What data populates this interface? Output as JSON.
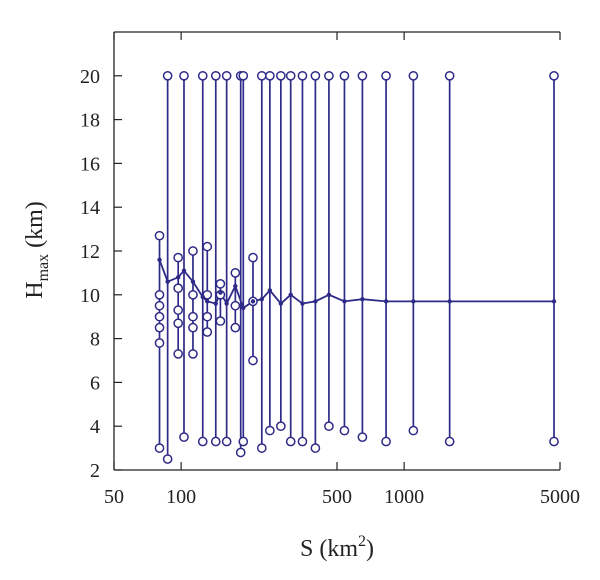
{
  "chart_data": {
    "type": "line",
    "x_scale": "log",
    "xlim": [
      50,
      5000
    ],
    "ylim": [
      2,
      22
    ],
    "grid": false,
    "legend": "none",
    "colors": {
      "series": "#2e2a88",
      "axis": "#222222"
    },
    "xlabel": {
      "main": "S (km",
      "sup": "2",
      "end": ")"
    },
    "ylabel": {
      "main": "H",
      "sub": "max",
      "end": " (km)"
    },
    "xticks": [
      50,
      100,
      500,
      1000,
      5000
    ],
    "xtick_labels": [
      "50",
      "100",
      "500",
      "1000",
      "5000"
    ],
    "yticks": [
      2,
      4,
      6,
      8,
      10,
      12,
      14,
      16,
      18,
      20
    ],
    "ytick_labels": [
      "2",
      "4",
      "6",
      "8",
      "10",
      "12",
      "14",
      "16",
      "18",
      "20"
    ],
    "series": [
      {
        "mean": [
          {
            "x": 80,
            "y": 11.6
          },
          {
            "x": 87,
            "y": 10.6
          },
          {
            "x": 97,
            "y": 10.8
          },
          {
            "x": 103,
            "y": 11.1
          },
          {
            "x": 113,
            "y": 10.6
          },
          {
            "x": 125,
            "y": 9.9
          },
          {
            "x": 131,
            "y": 9.7
          },
          {
            "x": 143,
            "y": 9.6
          },
          {
            "x": 150,
            "y": 10.1
          },
          {
            "x": 160,
            "y": 9.6
          },
          {
            "x": 175,
            "y": 10.4
          },
          {
            "x": 190,
            "y": 9.4
          },
          {
            "x": 210,
            "y": 9.7
          },
          {
            "x": 230,
            "y": 9.8
          },
          {
            "x": 250,
            "y": 10.2
          },
          {
            "x": 280,
            "y": 9.6
          },
          {
            "x": 310,
            "y": 10.0
          },
          {
            "x": 350,
            "y": 9.6
          },
          {
            "x": 400,
            "y": 9.7
          },
          {
            "x": 460,
            "y": 10.0
          },
          {
            "x": 540,
            "y": 9.7
          },
          {
            "x": 650,
            "y": 9.8
          },
          {
            "x": 830,
            "y": 9.7
          },
          {
            "x": 1100,
            "y": 9.7
          },
          {
            "x": 1600,
            "y": 9.7
          },
          {
            "x": 4700,
            "y": 9.7
          }
        ],
        "ranges": [
          {
            "x": 80,
            "min": 3.0,
            "max": 12.7
          },
          {
            "x": 87,
            "min": 2.5,
            "max": 20
          },
          {
            "x": 97,
            "min": 7.3,
            "max": 11.7
          },
          {
            "x": 103,
            "min": 3.5,
            "max": 20
          },
          {
            "x": 113,
            "min": 7.3,
            "max": 12.0
          },
          {
            "x": 125,
            "min": 3.3,
            "max": 20
          },
          {
            "x": 131,
            "min": 8.3,
            "max": 12.2
          },
          {
            "x": 143,
            "min": 3.3,
            "max": 20
          },
          {
            "x": 150,
            "min": 8.8,
            "max": 10.5
          },
          {
            "x": 160,
            "min": 3.3,
            "max": 20
          },
          {
            "x": 175,
            "min": 8.5,
            "max": 11.0
          },
          {
            "x": 185,
            "min": 2.8,
            "max": 20
          },
          {
            "x": 190,
            "min": 3.3,
            "max": 20
          },
          {
            "x": 210,
            "min": 7.0,
            "max": 11.7
          },
          {
            "x": 230,
            "min": 3.0,
            "max": 20
          },
          {
            "x": 250,
            "min": 3.8,
            "max": 20
          },
          {
            "x": 280,
            "min": 4.0,
            "max": 20
          },
          {
            "x": 310,
            "min": 3.3,
            "max": 20
          },
          {
            "x": 350,
            "min": 3.3,
            "max": 20
          },
          {
            "x": 400,
            "min": 3.0,
            "max": 20
          },
          {
            "x": 460,
            "min": 4.0,
            "max": 20
          },
          {
            "x": 540,
            "min": 3.8,
            "max": 20
          },
          {
            "x": 650,
            "min": 3.5,
            "max": 20
          },
          {
            "x": 830,
            "min": 3.3,
            "max": 20
          },
          {
            "x": 1100,
            "min": 3.8,
            "max": 20
          },
          {
            "x": 1600,
            "min": 3.3,
            "max": 20
          },
          {
            "x": 4700,
            "min": 3.3,
            "max": 20
          }
        ],
        "extra_circles": [
          {
            "x": 80,
            "y": 10.0
          },
          {
            "x": 80,
            "y": 9.5
          },
          {
            "x": 80,
            "y": 9.0
          },
          {
            "x": 80,
            "y": 8.5
          },
          {
            "x": 80,
            "y": 7.8
          },
          {
            "x": 97,
            "y": 10.3
          },
          {
            "x": 97,
            "y": 9.3
          },
          {
            "x": 97,
            "y": 8.7
          },
          {
            "x": 113,
            "y": 10.0
          },
          {
            "x": 113,
            "y": 9.0
          },
          {
            "x": 113,
            "y": 8.5
          },
          {
            "x": 131,
            "y": 10.0
          },
          {
            "x": 131,
            "y": 9.0
          },
          {
            "x": 150,
            "y": 10.0
          },
          {
            "x": 175,
            "y": 9.5
          },
          {
            "x": 210,
            "y": 9.7
          }
        ]
      }
    ]
  }
}
